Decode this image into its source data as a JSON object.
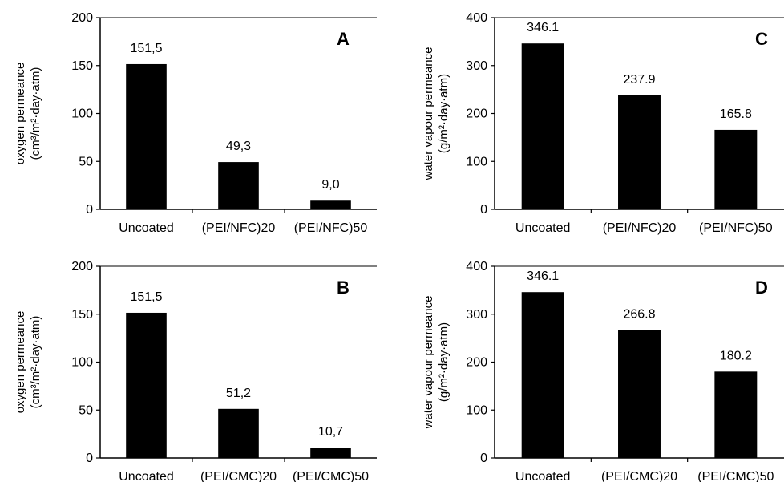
{
  "chart_data": [
    {
      "type": "bar",
      "panel_label": "A",
      "categories": [
        "Uncoated",
        "(PEI/NFC)20",
        "(PEI/NFC)50"
      ],
      "values": [
        151.5,
        49.3,
        9.0
      ],
      "data_labels": [
        "151,5",
        "49,3",
        "9,0"
      ],
      "ylabel_lines": [
        "oxygen permeance",
        "(cm³/m²·day·atm)"
      ],
      "ylim": [
        0,
        200
      ],
      "yticks": [
        0,
        50,
        100,
        150,
        200
      ],
      "bar_color": "#000000"
    },
    {
      "type": "bar",
      "panel_label": "C",
      "categories": [
        "Uncoated",
        "(PEI/NFC)20",
        "(PEI/NFC)50"
      ],
      "values": [
        346.1,
        237.9,
        165.8
      ],
      "data_labels": [
        "346.1",
        "237.9",
        "165.8"
      ],
      "ylabel_lines": [
        "water vapour permeance",
        "(g/m²·day·atm)"
      ],
      "ylim": [
        0,
        400
      ],
      "yticks": [
        0,
        100,
        200,
        300,
        400
      ],
      "bar_color": "#000000"
    },
    {
      "type": "bar",
      "panel_label": "B",
      "categories": [
        "Uncoated",
        "(PEI/CMC)20",
        "(PEI/CMC)50"
      ],
      "values": [
        151.5,
        51.2,
        10.7
      ],
      "data_labels": [
        "151,5",
        "51,2",
        "10,7"
      ],
      "ylabel_lines": [
        "oxygen permeance",
        "(cm³/m²·day·atm)"
      ],
      "ylim": [
        0,
        200
      ],
      "yticks": [
        0,
        50,
        100,
        150,
        200
      ],
      "bar_color": "#000000"
    },
    {
      "type": "bar",
      "panel_label": "D",
      "categories": [
        "Uncoated",
        "(PEI/CMC)20",
        "(PEI/CMC)50"
      ],
      "values": [
        346.1,
        266.8,
        180.2
      ],
      "data_labels": [
        "346.1",
        "266.8",
        "180.2"
      ],
      "ylabel_lines": [
        "water vapour permeance",
        "(g/m²·day·atm)"
      ],
      "ylim": [
        0,
        400
      ],
      "yticks": [
        0,
        100,
        200,
        300,
        400
      ],
      "bar_color": "#000000"
    }
  ]
}
